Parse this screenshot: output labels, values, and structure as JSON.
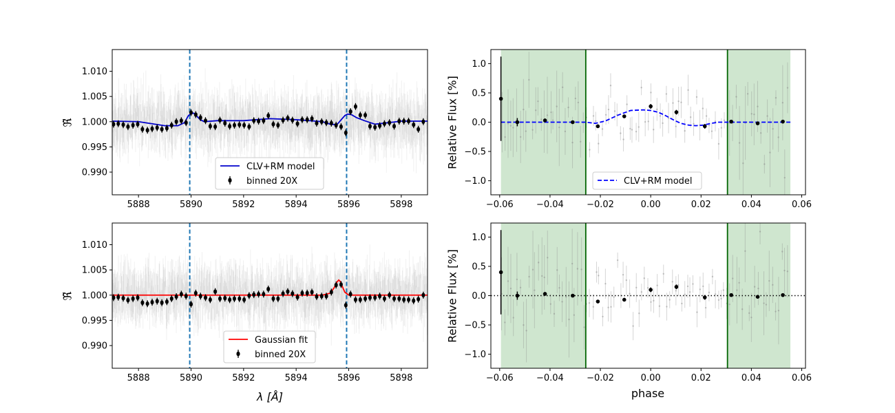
{
  "figure": {
    "xlabel_spectrum": "λ [Å]",
    "xlabel_phase": "phase",
    "ylabel_spectrum": "ℜ̃",
    "ylabel_lightcurve": "Relative Flux [%]"
  },
  "chart_data": [
    {
      "id": "spec_top",
      "type": "scatter",
      "xlabel": "",
      "ylabel": "ℜ̃",
      "xlim": [
        5887.0,
        5899.0
      ],
      "ylim": [
        0.9855,
        1.0143
      ],
      "xticks": [
        5888,
        5890,
        5892,
        5894,
        5896,
        5898
      ],
      "xtick_labels": [
        "5888",
        "5890",
        "5892",
        "5894",
        "5896",
        "5898"
      ],
      "yticks": [
        0.99,
        0.995,
        1.0,
        1.005,
        1.01
      ],
      "ytick_labels": [
        "0.990",
        "0.995",
        "1.000",
        "1.005",
        "1.010"
      ],
      "vlines": [
        5889.95,
        5895.92
      ],
      "model": {
        "name": "CLV+RM model",
        "color": "#0000cc",
        "x": [
          5887.0,
          5888.0,
          5889.0,
          5889.5,
          5889.75,
          5889.9,
          5890.0,
          5890.1,
          5890.2,
          5890.35,
          5890.5,
          5891.0,
          5892.0,
          5893.0,
          5894.0,
          5895.0,
          5895.3,
          5895.55,
          5895.7,
          5895.85,
          5895.95,
          5896.1,
          5896.3,
          5896.6,
          5897.0,
          5897.5,
          5898.0,
          5899.0
        ],
        "y": [
          1.0001,
          1.0,
          0.9992,
          0.9992,
          0.9998,
          1.0012,
          1.0016,
          1.0017,
          1.0012,
          1.0004,
          1.0,
          1.0002,
          1.0002,
          1.0006,
          1.0004,
          1.0,
          0.9995,
          0.9994,
          1.0003,
          1.0012,
          1.0015,
          1.0014,
          1.0008,
          1.0002,
          0.9995,
          0.9998,
          1.0001,
          1.0001
        ]
      },
      "binned": {
        "name": "binned 20X",
        "x": [
          5887.05,
          5887.23,
          5887.42,
          5887.6,
          5887.79,
          5887.97,
          5888.15,
          5888.34,
          5888.52,
          5888.71,
          5888.89,
          5889.08,
          5889.26,
          5889.44,
          5889.63,
          5889.81,
          5890.0,
          5890.18,
          5890.36,
          5890.55,
          5890.73,
          5890.92,
          5891.1,
          5891.29,
          5891.47,
          5891.65,
          5891.84,
          5892.02,
          5892.21,
          5892.39,
          5892.57,
          5892.76,
          5892.94,
          5893.13,
          5893.31,
          5893.5,
          5893.68,
          5893.86,
          5894.05,
          5894.23,
          5894.42,
          5894.6,
          5894.78,
          5894.97,
          5895.15,
          5895.34,
          5895.52,
          5895.71,
          5895.89,
          5896.07,
          5896.26,
          5896.44,
          5896.63,
          5896.81,
          5897.0,
          5897.18,
          5897.36,
          5897.55,
          5897.73,
          5897.92,
          5898.1,
          5898.28,
          5898.47,
          5898.65,
          5898.84
        ],
        "y": [
          0.9995,
          0.9996,
          0.9994,
          0.999,
          0.9993,
          0.9995,
          0.9985,
          0.9983,
          0.9986,
          0.9988,
          0.9985,
          0.9987,
          0.9993,
          1.0,
          1.0002,
          0.9998,
          1.0018,
          1.0014,
          1.0008,
          1.0002,
          0.9991,
          0.999,
          1.0003,
          0.9997,
          0.9991,
          0.9993,
          0.9994,
          0.9993,
          0.999,
          1.0002,
          1.0001,
          1.0002,
          1.0012,
          0.9995,
          0.9993,
          1.0003,
          1.0007,
          1.0003,
          0.9996,
          1.0004,
          1.0004,
          1.0006,
          0.9997,
          1.0,
          0.9998,
          0.9997,
          0.9993,
          0.999,
          0.9978,
          1.002,
          1.003,
          1.0013,
          1.0013,
          0.9991,
          0.9989,
          0.9992,
          0.9996,
          0.9998,
          0.9991,
          1.0001,
          1.0001,
          1.0001,
          0.9994,
          0.9985,
          1.0
        ]
      },
      "legend": {
        "location": "lower center",
        "entries": [
          "CLV+RM model",
          "binned 20X"
        ]
      }
    },
    {
      "id": "spec_bottom",
      "type": "scatter",
      "xlabel": "λ [Å]",
      "ylabel": "ℜ̃",
      "xlim": [
        5887.0,
        5899.0
      ],
      "ylim": [
        0.9855,
        1.0143
      ],
      "xticks": [
        5888,
        5890,
        5892,
        5894,
        5896,
        5898
      ],
      "xtick_labels": [
        "5888",
        "5890",
        "5892",
        "5894",
        "5896",
        "5898"
      ],
      "yticks": [
        0.99,
        0.995,
        1.0,
        1.005,
        1.01
      ],
      "ytick_labels": [
        "0.990",
        "0.995",
        "1.000",
        "1.005",
        "1.010"
      ],
      "vlines": [
        5889.95,
        5895.92
      ],
      "model": {
        "name": "Gaussian fit",
        "color": "#ff0000",
        "x": [
          5887.0,
          5895.0,
          5895.3,
          5895.45,
          5895.55,
          5895.62,
          5895.68,
          5895.75,
          5895.85,
          5896.0,
          5899.0
        ],
        "y": [
          1.0,
          1.0,
          1.0004,
          1.0015,
          1.0026,
          1.003,
          1.0027,
          1.0018,
          1.0006,
          1.0,
          1.0
        ]
      },
      "binned": {
        "name": "binned 20X",
        "x": [
          5887.05,
          5887.23,
          5887.42,
          5887.6,
          5887.79,
          5887.97,
          5888.15,
          5888.34,
          5888.52,
          5888.71,
          5888.89,
          5889.08,
          5889.26,
          5889.44,
          5889.63,
          5889.81,
          5890.0,
          5890.18,
          5890.36,
          5890.55,
          5890.73,
          5890.92,
          5891.1,
          5891.29,
          5891.47,
          5891.65,
          5891.84,
          5892.02,
          5892.21,
          5892.39,
          5892.57,
          5892.76,
          5892.94,
          5893.13,
          5893.31,
          5893.5,
          5893.68,
          5893.86,
          5894.05,
          5894.23,
          5894.42,
          5894.6,
          5894.78,
          5894.97,
          5895.15,
          5895.34,
          5895.52,
          5895.71,
          5895.89,
          5896.07,
          5896.26,
          5896.44,
          5896.63,
          5896.81,
          5897.0,
          5897.18,
          5897.36,
          5897.55,
          5897.73,
          5897.92,
          5898.1,
          5898.28,
          5898.47,
          5898.65,
          5898.84
        ],
        "y": [
          0.9995,
          0.9996,
          0.9994,
          0.999,
          0.9993,
          0.9995,
          0.9985,
          0.9983,
          0.9986,
          0.9988,
          0.9985,
          0.9987,
          0.9993,
          0.9997,
          1.0002,
          0.9998,
          0.9982,
          1.0004,
          0.9998,
          0.9995,
          0.9991,
          1.0007,
          0.9993,
          0.9994,
          0.9991,
          0.9993,
          0.9993,
          0.9991,
          0.9999,
          1.0001,
          1.0002,
          1.0002,
          1.0012,
          0.9993,
          0.9993,
          1.0003,
          1.0007,
          1.0003,
          0.9996,
          1.0004,
          1.0004,
          1.0006,
          0.9997,
          0.9998,
          0.9998,
          1.0006,
          1.002,
          1.0021,
          0.998,
          1.0002,
          0.9991,
          0.9991,
          0.9993,
          0.9995,
          0.9995,
          0.9998,
          0.9993,
          1.0,
          0.9993,
          0.9993,
          0.9991,
          0.9991,
          0.9989,
          0.9992,
          1.0
        ]
      },
      "legend": {
        "location": "lower center",
        "entries": [
          "Gaussian fit",
          "binned 20X"
        ]
      }
    },
    {
      "id": "lc_top",
      "type": "scatter",
      "xlabel": "",
      "ylabel": "Relative Flux [%]",
      "xlim": [
        -0.0635,
        0.0615
      ],
      "ylim": [
        -1.24,
        1.24
      ],
      "xticks": [
        -0.06,
        -0.04,
        -0.02,
        0.0,
        0.02,
        0.04,
        0.06
      ],
      "xtick_labels": [
        "−0.06",
        "−0.04",
        "−0.02",
        "0.00",
        "0.02",
        "0.04",
        "0.06"
      ],
      "yticks": [
        -1.0,
        -0.5,
        0.0,
        0.5,
        1.0
      ],
      "ytick_labels": [
        "−1.0",
        "−0.5",
        "0.0",
        "0.5",
        "1.0"
      ],
      "shaded_regions": [
        [
          -0.0595,
          -0.0258
        ],
        [
          0.0305,
          0.0555
        ]
      ],
      "contact_lines": [
        -0.0258,
        0.0305
      ],
      "model": {
        "name": "CLV+RM model",
        "color": "#0000ff",
        "dashed": true,
        "x": [
          -0.0595,
          -0.0258,
          -0.022,
          -0.018,
          -0.013,
          -0.008,
          -0.003,
          0.0,
          0.003,
          0.006,
          0.009,
          0.012,
          0.015,
          0.018,
          0.021,
          0.024,
          0.027,
          0.0305,
          0.0555
        ],
        "y": [
          0.0,
          0.0,
          -0.02,
          0.02,
          0.12,
          0.2,
          0.21,
          0.2,
          0.17,
          0.11,
          0.04,
          -0.02,
          -0.05,
          -0.06,
          -0.05,
          -0.02,
          0.0,
          0.0,
          0.0
        ]
      },
      "binned": {
        "x": [
          -0.0595,
          -0.053,
          -0.042,
          -0.031,
          -0.021,
          -0.0105,
          0.0,
          0.0102,
          0.0215,
          0.032,
          0.0425,
          0.0525
        ],
        "y": [
          0.4,
          0.0,
          0.03,
          0.0,
          -0.07,
          0.1,
          0.27,
          0.17,
          -0.07,
          0.01,
          -0.02,
          0.01
        ],
        "err": [
          0.72,
          0.07,
          0.03,
          0.02,
          0.03,
          0.03,
          0.04,
          0.04,
          0.04,
          0.02,
          0.02,
          0.03
        ]
      },
      "legend": {
        "location": "lower center",
        "entries": [
          "CLV+RM model"
        ]
      }
    },
    {
      "id": "lc_bottom",
      "type": "scatter",
      "xlabel": "phase",
      "ylabel": "Relative Flux [%]",
      "xlim": [
        -0.0635,
        0.0615
      ],
      "ylim": [
        -1.24,
        1.24
      ],
      "xticks": [
        -0.06,
        -0.04,
        -0.02,
        0.0,
        0.02,
        0.04,
        0.06
      ],
      "xtick_labels": [
        "−0.06",
        "−0.04",
        "−0.02",
        "0.00",
        "0.02",
        "0.04",
        "0.06"
      ],
      "yticks": [
        -1.0,
        -0.5,
        0.0,
        0.5,
        1.0
      ],
      "ytick_labels": [
        "−1.0",
        "−0.5",
        "0.0",
        "0.5",
        "1.0"
      ],
      "shaded_regions": [
        [
          -0.0595,
          -0.0258
        ],
        [
          0.0305,
          0.0555
        ]
      ],
      "contact_lines": [
        -0.0258,
        0.0305
      ],
      "hline": 0.0,
      "binned": {
        "x": [
          -0.0595,
          -0.053,
          -0.042,
          -0.031,
          -0.021,
          -0.0105,
          0.0,
          0.0102,
          0.0215,
          0.032,
          0.0425,
          0.0525
        ],
        "y": [
          0.4,
          0.0,
          0.03,
          0.0,
          -0.1,
          -0.07,
          0.1,
          0.15,
          -0.03,
          0.01,
          -0.02,
          0.01
        ],
        "err": [
          0.72,
          0.07,
          0.03,
          0.02,
          0.03,
          0.03,
          0.04,
          0.04,
          0.04,
          0.02,
          0.02,
          0.03
        ]
      }
    }
  ]
}
